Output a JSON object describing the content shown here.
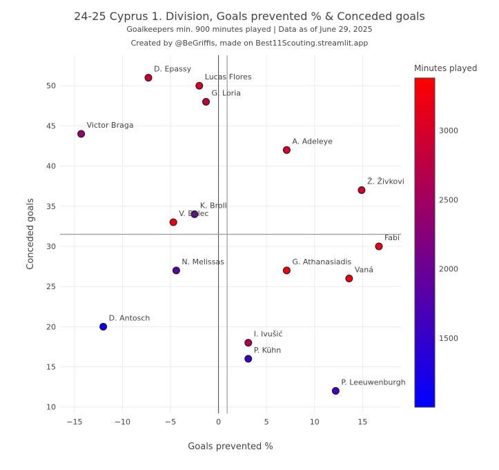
{
  "title": "24-25 Cyprus 1. Division, Goals prevented % & Conceded goals",
  "subtitle": "Goalkeepers min. 900 minutes played | Data as of June 29, 2025",
  "credit": "Created by @BeGriffis, made on Best11Scouting.streamlit.app",
  "chart_data": {
    "type": "scatter",
    "xlabel": "Goals prevented %",
    "ylabel": "Conceded goals",
    "xlim": [
      -16.5,
      19
    ],
    "ylim": [
      9.2,
      53.8
    ],
    "xticks": [
      -15,
      -10,
      -5,
      0,
      5,
      10,
      15
    ],
    "yticks": [
      10,
      15,
      20,
      25,
      30,
      35,
      40,
      45,
      50
    ],
    "xtick_labels": [
      "−15",
      "−10",
      "−5",
      "0",
      "5",
      "10",
      "15"
    ],
    "ytick_labels": [
      "10",
      "15",
      "20",
      "25",
      "30",
      "35",
      "40",
      "45",
      "50"
    ],
    "grid": true,
    "reference_lines": {
      "x_mean": 0.9,
      "y_mean": 31.5
    },
    "colorbar": {
      "title": "Minutes played",
      "min": 1000,
      "max": 3380,
      "ticks": [
        1500,
        2000,
        2500,
        3000
      ],
      "tick_labels": [
        "1500",
        "2000",
        "2500",
        "3000"
      ],
      "colorscale": [
        "#0000ff",
        "#ff0000"
      ]
    },
    "points": [
      {
        "name": "D. Epassy",
        "x": -7.3,
        "y": 51,
        "minutes": 2900
      },
      {
        "name": "Lucas Flores",
        "x": -2.0,
        "y": 50,
        "minutes": 3050
      },
      {
        "name": "G. Loria",
        "x": -1.3,
        "y": 48,
        "minutes": 2850
      },
      {
        "name": "Victor Braga",
        "x": -14.3,
        "y": 44,
        "minutes": 2400
      },
      {
        "name": "A. Adeleye",
        "x": 7.1,
        "y": 42,
        "minutes": 3050
      },
      {
        "name": "Ž. Živkovi",
        "x": 14.9,
        "y": 37,
        "minutes": 3000
      },
      {
        "name": "K. Broll",
        "x": -2.5,
        "y": 34,
        "minutes": 1900
      },
      {
        "name": "V. Belec",
        "x": -4.7,
        "y": 33,
        "minutes": 3250
      },
      {
        "name": "Fabi",
        "x": 16.7,
        "y": 30,
        "minutes": 3200
      },
      {
        "name": "N. Melissas",
        "x": -4.4,
        "y": 27,
        "minutes": 1800
      },
      {
        "name": "G. Athanasiadis",
        "x": 7.1,
        "y": 27,
        "minutes": 3250
      },
      {
        "name": "Vaná",
        "x": 13.6,
        "y": 26,
        "minutes": 3250
      },
      {
        "name": "D. Antosch",
        "x": -12.0,
        "y": 20,
        "minutes": 1100
      },
      {
        "name": "I. Ivušić",
        "x": 3.1,
        "y": 18,
        "minutes": 2650
      },
      {
        "name": "P. Kühn",
        "x": 3.1,
        "y": 16,
        "minutes": 1550
      },
      {
        "name": "P. Leeuwenburgh",
        "x": 12.2,
        "y": 12,
        "minutes": 1650
      }
    ]
  }
}
